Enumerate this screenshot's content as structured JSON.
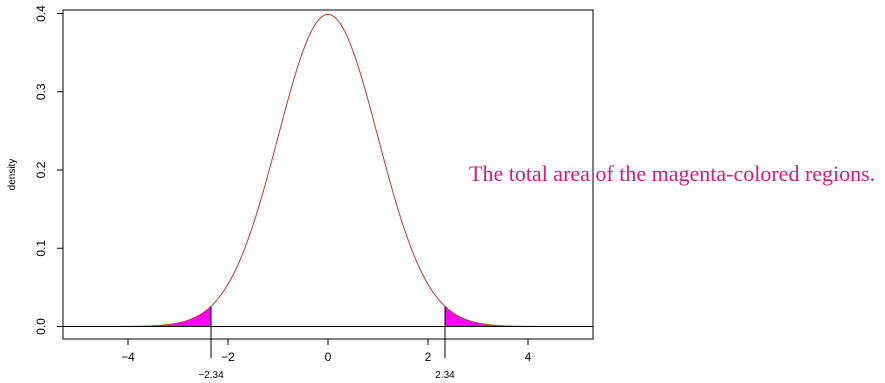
{
  "chart_data": {
    "type": "area",
    "ylabel": "density",
    "xlim": [
      -5.3,
      5.3
    ],
    "ylim": [
      0,
      0.4
    ],
    "x_ticks": [
      -4,
      -2,
      0,
      2,
      4
    ],
    "x_tick_labels": [
      "−4",
      "−2",
      "0",
      "2",
      "4"
    ],
    "y_ticks": [
      0.0,
      0.1,
      0.2,
      0.3,
      0.4
    ],
    "y_tick_labels": [
      "0.0",
      "0.1",
      "0.2",
      "0.3",
      "0.4"
    ],
    "critical_values": [
      -2.34,
      2.34
    ],
    "critical_labels": [
      "−2.34",
      "2.34"
    ],
    "x_range": [
      -5,
      5
    ],
    "distribution": {
      "name": "standard normal",
      "mean": 0,
      "sd": 1
    },
    "curve_color": "#c0392b",
    "shade_color": "#ff00ff",
    "annotation": "The total area of the magenta-colored regions."
  }
}
